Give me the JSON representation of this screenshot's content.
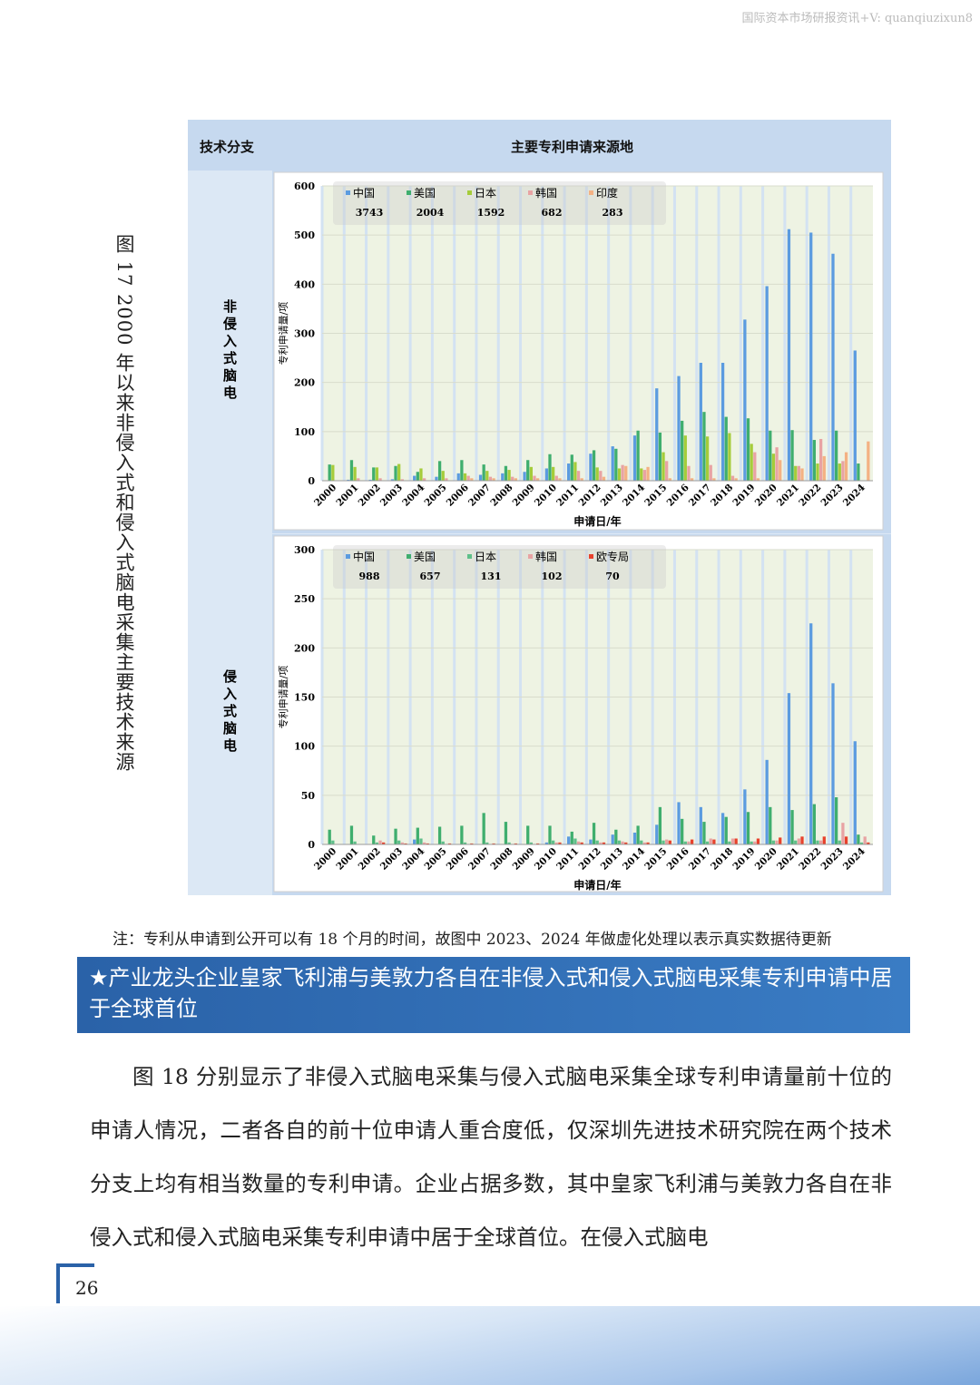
{
  "header": {
    "watermark": "国际资本市场研报资讯+V: quanqiuzixun8"
  },
  "figure_caption": "图 17 2000 年以来非侵入式和侵入式脑电采集主要技术来源",
  "table": {
    "headers": [
      "技术分支",
      "主要专利申请来源地"
    ],
    "row_labels": [
      "非侵入式脑电",
      "侵入式脑电"
    ]
  },
  "chart_data": [
    {
      "type": "bar",
      "x_label": "申请日/年",
      "y_label": "专利申请量/项",
      "categories": [
        "2000",
        "2001",
        "2002",
        "2003",
        "2004",
        "2005",
        "2006",
        "2007",
        "2008",
        "2009",
        "2010",
        "2011",
        "2012",
        "2013",
        "2014",
        "2015",
        "2016",
        "2017",
        "2018",
        "2019",
        "2020",
        "2021",
        "2022",
        "2023",
        "2024"
      ],
      "ylim": [
        0,
        600
      ],
      "yticks": [
        0,
        100,
        200,
        300,
        400,
        500,
        600
      ],
      "grid": true,
      "series": [
        {
          "name": "中国",
          "color": "#5b9be0",
          "total": "3743",
          "values": [
            0,
            2,
            2,
            3,
            10,
            8,
            15,
            12,
            15,
            18,
            25,
            35,
            55,
            70,
            92,
            188,
            213,
            240,
            240,
            328,
            396,
            512,
            505,
            462,
            265
          ]
        },
        {
          "name": "美国",
          "color": "#3fae6e",
          "total": "2004",
          "values": [
            33,
            42,
            27,
            30,
            18,
            40,
            42,
            33,
            30,
            42,
            54,
            53,
            62,
            65,
            102,
            98,
            122,
            140,
            130,
            127,
            102,
            103,
            83,
            102,
            35
          ]
        },
        {
          "name": "日本",
          "color": "#a5cc3a",
          "total": "1592",
          "values": [
            32,
            28,
            27,
            34,
            25,
            20,
            15,
            20,
            22,
            28,
            28,
            38,
            27,
            25,
            25,
            58,
            92,
            90,
            97,
            75,
            55,
            30,
            35,
            35,
            0
          ]
        },
        {
          "name": "韩国",
          "color": "#e8a3a3",
          "total": "682",
          "values": [
            0,
            5,
            5,
            3,
            5,
            5,
            10,
            8,
            8,
            10,
            10,
            20,
            20,
            32,
            22,
            40,
            30,
            32,
            10,
            58,
            68,
            30,
            85,
            40,
            0
          ]
        },
        {
          "name": "印度",
          "color": "#f4b183",
          "total": "283",
          "values": [
            0,
            0,
            0,
            0,
            0,
            0,
            5,
            5,
            5,
            5,
            5,
            5,
            8,
            30,
            28,
            5,
            5,
            5,
            5,
            5,
            42,
            25,
            50,
            58,
            80
          ]
        }
      ]
    },
    {
      "type": "bar",
      "x_label": "申请日/年",
      "y_label": "专利申请量/项",
      "categories": [
        "2000",
        "2001",
        "2002",
        "2003",
        "2004",
        "2005",
        "2006",
        "2007",
        "2008",
        "2009",
        "2010",
        "2011",
        "2012",
        "2013",
        "2014",
        "2015",
        "2016",
        "2017",
        "2018",
        "2019",
        "2020",
        "2021",
        "2022",
        "2023",
        "2024"
      ],
      "ylim": [
        0,
        300
      ],
      "yticks": [
        0,
        50,
        100,
        150,
        200,
        250,
        300
      ],
      "grid": true,
      "series": [
        {
          "name": "中国",
          "color": "#5b9be0",
          "total": "988",
          "values": [
            0,
            0,
            0,
            0,
            5,
            0,
            0,
            0,
            0,
            0,
            2,
            8,
            5,
            10,
            12,
            20,
            43,
            38,
            32,
            56,
            86,
            154,
            225,
            164,
            105
          ]
        },
        {
          "name": "美国",
          "color": "#3fae6e",
          "total": "657",
          "values": [
            15,
            19,
            9,
            16,
            17,
            18,
            19,
            32,
            23,
            19,
            19,
            13,
            22,
            15,
            19,
            38,
            26,
            23,
            28,
            33,
            38,
            35,
            41,
            48,
            10
          ]
        },
        {
          "name": "日本",
          "color": "#5fbf8a",
          "total": "131",
          "values": [
            4,
            3,
            2,
            4,
            6,
            3,
            2,
            2,
            2,
            2,
            4,
            6,
            4,
            4,
            4,
            4,
            3,
            3,
            3,
            3,
            4,
            4,
            4,
            4,
            2
          ]
        },
        {
          "name": "韩国",
          "color": "#e8a3a3",
          "total": "102",
          "values": [
            0,
            0,
            4,
            2,
            2,
            0,
            0,
            0,
            0,
            0,
            2,
            3,
            2,
            3,
            2,
            5,
            3,
            6,
            6,
            3,
            4,
            6,
            4,
            22,
            8
          ]
        },
        {
          "name": "欧专局",
          "color": "#e8412c",
          "total": "70",
          "values": [
            0,
            0,
            2,
            1,
            1,
            1,
            1,
            1,
            1,
            1,
            2,
            2,
            2,
            2,
            2,
            4,
            5,
            5,
            6,
            6,
            7,
            8,
            8,
            8,
            2
          ]
        }
      ]
    }
  ],
  "note": "注：专利从申请到公开可以有 18 个月的时间，故图中 2023、2024 年做虚化处理以表示真实数据待更新",
  "banner": "★产业龙头企业皇家飞利浦与美敦力各自在非侵入式和侵入式脑电采集专利申请中居于全球首位",
  "paragraph": "图 18 分别显示了非侵入式脑电采集与侵入式脑电采集全球专利申请量前十位的申请人情况，二者各自的前十位申请人重合度低，仅深圳先进技术研究院在两个技术分支上均有相当数量的专利申请。企业占据多数，其中皇家飞利浦与美敦力各自在非侵入式和侵入式脑电采集专利申请中居于全球首位。在侵入式脑电",
  "page_number": "26"
}
